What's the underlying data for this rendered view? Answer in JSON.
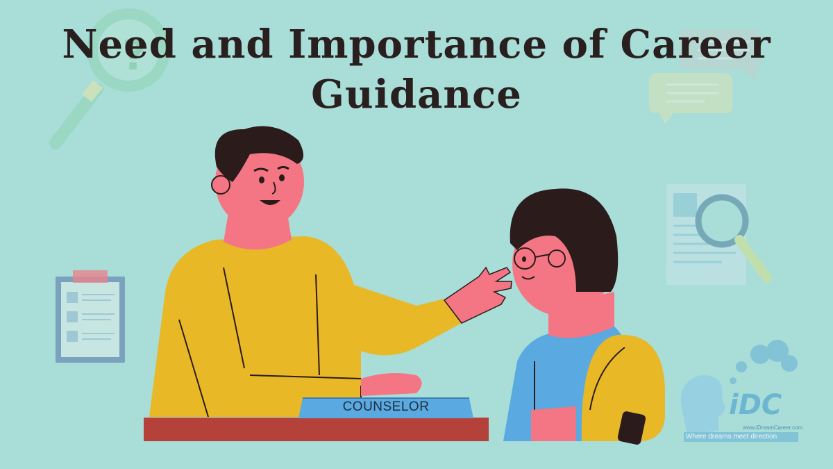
{
  "title": {
    "line1": "Need and Importance of Career",
    "line2": "Guidance"
  },
  "desk_plate": {
    "label": "COUNSELOR"
  },
  "watermark": {
    "logo": "iDC",
    "site": "www.iDreamCareer.com",
    "tagline": "Where dreams meet direction"
  },
  "colors": {
    "background": "#a8ddd8",
    "skin": "#f47684",
    "hair": "#2b1b1b",
    "sweater": "#e8b827",
    "shirt": "#5aa9e0",
    "desk": "#b5423a",
    "plate": "#5aa9e0"
  },
  "icons": [
    "magnifier-icon",
    "chat-bubbles-icon",
    "clipboard-icon",
    "document-search-icon",
    "idc-logo"
  ]
}
